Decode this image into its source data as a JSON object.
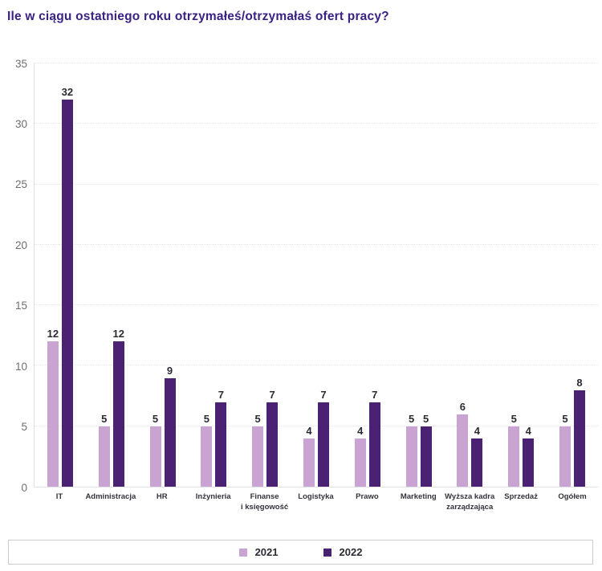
{
  "header": {
    "title": "Ile w ciągu ostatniego roku otrzymałeś/otrzymałaś ofert pracy?",
    "title_color": "#3a2184"
  },
  "chart_data": {
    "type": "bar",
    "title": "Ile w ciągu ostatniego roku otrzymałeś/otrzymałaś ofert pracy?",
    "categories": [
      "IT",
      "Administracja",
      "HR",
      "Inżynieria",
      "Finanse\ni księgowość",
      "Logistyka",
      "Prawo",
      "Marketing",
      "Wyższa kadra\nzarządzająca",
      "Sprzedaż",
      "Ogółem"
    ],
    "series": [
      {
        "name": "2021",
        "color": "#c9a4d3",
        "values": [
          12,
          5,
          5,
          5,
          5,
          4,
          4,
          5,
          6,
          5,
          5
        ]
      },
      {
        "name": "2022",
        "color": "#4b2174",
        "values": [
          32,
          12,
          9,
          7,
          7,
          7,
          7,
          5,
          4,
          4,
          8
        ]
      }
    ],
    "xlabel": "",
    "ylabel": "",
    "ylim": [
      0,
      35
    ],
    "yticks": [
      0,
      5,
      10,
      15,
      20,
      25,
      30,
      35
    ],
    "grid": "horizontal-dotted",
    "legend_position": "bottom",
    "data_labels": true
  },
  "legend": {
    "items": [
      {
        "label": "2021",
        "color": "#c9a4d3"
      },
      {
        "label": "2022",
        "color": "#4b2174"
      }
    ]
  },
  "colors": {
    "bar_2021": "#c9a4d3",
    "bar_2022": "#4b2174",
    "title": "#3a2184",
    "tick_label": "#6e6e6e",
    "value_label": "#2b2b33",
    "category_label": "#33333c",
    "gridline": "#e9e3e7",
    "axis_line": "#e2e2e2",
    "legend_border": "#cbcbcb",
    "background": "#ffffff"
  }
}
